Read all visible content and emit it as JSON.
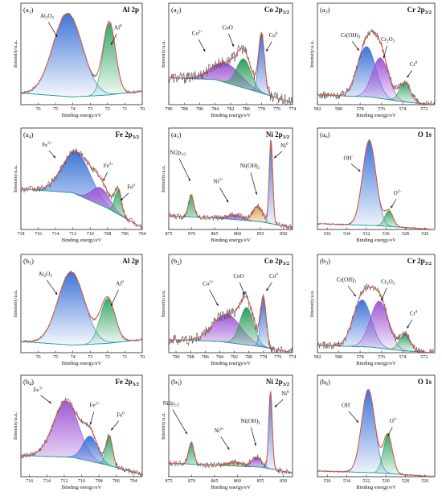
{
  "chart_data": [
    {
      "id": "a1",
      "type": "area",
      "tag": "a",
      "tag_sub": "1",
      "title_main": "Al 2p",
      "title_sub": "",
      "xlabel": "Binding energy/eV",
      "ylabel": "Intensity/a.u.",
      "xlim": [
        77,
        70
      ],
      "xticks": [
        76,
        75,
        74,
        73,
        72,
        71,
        70
      ],
      "background": [
        [
          77,
          0.12
        ],
        [
          74,
          0.08
        ],
        [
          72,
          0.1
        ],
        [
          70,
          0.14
        ]
      ],
      "components": [
        {
          "name": "Al2O3",
          "color": "#3f75d6",
          "center": 74.3,
          "fwhm": 2.0,
          "amp": 0.86
        },
        {
          "name": "Al0",
          "color": "#38a96a",
          "center": 71.9,
          "fwhm": 0.85,
          "amp": 0.74
        }
      ],
      "noise": 0.015,
      "labels": [
        {
          "text": "Al",
          "sub": "2",
          "text2": "O",
          "sub2": "3",
          "lx": 75.5,
          "ly": 0.9,
          "ax": 74.9,
          "ay": 0.7
        },
        {
          "text": "Al",
          "sup": "0",
          "lx": 71.4,
          "ly": 0.78,
          "ax": 71.8,
          "ay": 0.62
        }
      ]
    },
    {
      "id": "a2",
      "type": "area",
      "tag": "a",
      "tag_sub": "2",
      "title_main": "Co 2p",
      "title_sub": "3/2",
      "xlabel": "Binding energy/eV",
      "ylabel": "Intensity/a.u.",
      "xlim": [
        790,
        774
      ],
      "xticks": [
        790,
        788,
        786,
        784,
        782,
        780,
        778,
        776,
        774
      ],
      "background": [
        [
          790,
          0.28
        ],
        [
          784,
          0.26
        ],
        [
          778,
          0.12
        ],
        [
          774,
          0.02
        ]
      ],
      "components": [
        {
          "name": "Co2+",
          "color": "#a05ad6",
          "center": 782.6,
          "fwhm": 4.5,
          "amp": 0.2
        },
        {
          "name": "CoO",
          "color": "#2f9a5e",
          "center": 780.3,
          "fwhm": 2.2,
          "amp": 0.3
        },
        {
          "name": "Co0",
          "color": "#3f75d6",
          "center": 778.0,
          "fwhm": 0.9,
          "amp": 0.6
        }
      ],
      "noise": 0.06,
      "labels": [
        {
          "text": "Co",
          "sup": "2+",
          "lx": 786.3,
          "ly": 0.72,
          "ax": 785.3,
          "ay": 0.55
        },
        {
          "text": "CoO",
          "lx": 782.4,
          "ly": 0.78,
          "ax": 781.6,
          "ay": 0.6
        },
        {
          "text": "Co",
          "sup": "0",
          "lx": 776.5,
          "ly": 0.7,
          "ax": 777.4,
          "ay": 0.55
        }
      ]
    },
    {
      "id": "a3",
      "type": "area",
      "tag": "a",
      "tag_sub": "3",
      "title_main": "Cr 2p",
      "title_sub": "3/2",
      "xlabel": "Binding energy/eV",
      "ylabel": "Intensity/a.u.",
      "xlim": [
        582,
        571
      ],
      "xticks": [
        582,
        580,
        578,
        576,
        574,
        572
      ],
      "background": [
        [
          582,
          0.1
        ],
        [
          577,
          0.08
        ],
        [
          574,
          0.03
        ],
        [
          571,
          0.0
        ]
      ],
      "components": [
        {
          "name": "Cr(OH)3",
          "color": "#3f75d6",
          "center": 577.4,
          "fwhm": 2.0,
          "amp": 0.52
        },
        {
          "name": "Cr2O3",
          "color": "#a05ad6",
          "center": 576.1,
          "fwhm": 1.8,
          "amp": 0.42
        },
        {
          "name": "Cr0",
          "color": "#38a96a",
          "center": 573.8,
          "fwhm": 1.2,
          "amp": 0.2
        }
      ],
      "noise": 0.04,
      "labels": [
        {
          "text": "Cr(OH)",
          "sub": "3",
          "lx": 578.9,
          "ly": 0.7,
          "ax": 578.1,
          "ay": 0.56
        },
        {
          "text": "Cr",
          "sub": "2",
          "text2": "O",
          "sub2": "3",
          "lx": 575.4,
          "ly": 0.66,
          "ax": 575.8,
          "ay": 0.48
        },
        {
          "text": "Cr",
          "sup": "0",
          "lx": 573.0,
          "ly": 0.4,
          "ax": 573.6,
          "ay": 0.28
        }
      ]
    },
    {
      "id": "a4",
      "type": "area",
      "tag": "a",
      "tag_sub": "4",
      "title_main": "Fe 2p",
      "title_sub": "3/2",
      "xlabel": "Binding energy/eV",
      "ylabel": "Intensity/a.u.",
      "xlim": [
        718,
        704
      ],
      "xticks": [
        718,
        716,
        714,
        712,
        710,
        708,
        706,
        704
      ],
      "background": [
        [
          718,
          0.42
        ],
        [
          712,
          0.38
        ],
        [
          708,
          0.22
        ],
        [
          704,
          0.02
        ]
      ],
      "components": [
        {
          "name": "Fe3+",
          "color": "#3f75d6",
          "center": 711.6,
          "fwhm": 3.8,
          "amp": 0.44
        },
        {
          "name": "Fe2+",
          "color": "#a05ad6",
          "center": 708.8,
          "fwhm": 2.4,
          "amp": 0.18
        },
        {
          "name": "Fe0",
          "color": "#38a96a",
          "center": 706.8,
          "fwhm": 0.9,
          "amp": 0.24
        }
      ],
      "noise": 0.035,
      "labels": [
        {
          "text": "Fe",
          "sup": "3+",
          "lx": 715.0,
          "ly": 0.86,
          "ax": 714.0,
          "ay": 0.74
        },
        {
          "text": "Fe",
          "sup": "2+",
          "lx": 707.9,
          "ly": 0.64,
          "ax": 708.5,
          "ay": 0.5
        },
        {
          "text": "Fe",
          "sup": "0",
          "lx": 705.3,
          "ly": 0.42,
          "ax": 706.5,
          "ay": 0.3
        }
      ]
    },
    {
      "id": "a5",
      "type": "area",
      "tag": "a",
      "tag_sub": "5",
      "title_main": "Ni 2p",
      "title_sub": "3/2",
      "xlabel": "Binding energy/eV",
      "ylabel": "Intensity/a.u.",
      "xlim": [
        875,
        848
      ],
      "xticks": [
        875,
        870,
        865,
        860,
        855,
        850
      ],
      "background": [
        [
          875,
          0.14
        ],
        [
          865,
          0.12
        ],
        [
          855,
          0.08
        ],
        [
          848,
          0.02
        ]
      ],
      "components": [
        {
          "name": "Ni2p1/2",
          "color": "#38a96a",
          "center": 870.1,
          "fwhm": 1.4,
          "amp": 0.22
        },
        {
          "name": "Ni2+",
          "color": "#a05ad6",
          "center": 860.5,
          "fwhm": 4.0,
          "amp": 0.05
        },
        {
          "name": "Ni(OH)2",
          "color": "#d5a358",
          "center": 855.6,
          "fwhm": 2.5,
          "amp": 0.16
        },
        {
          "name": "Ni0",
          "color": "#3f75d6",
          "center": 852.7,
          "fwhm": 0.9,
          "amp": 0.86
        }
      ],
      "noise": 0.03,
      "labels": [
        {
          "text": "Ni2p",
          "sub": "1/2",
          "lx": 873.0,
          "ly": 0.78,
          "ax": 870.3,
          "ay": 0.5
        },
        {
          "text": "Ni",
          "sup": "2+",
          "lx": 864.2,
          "ly": 0.48,
          "ax": 862.0,
          "ay": 0.28
        },
        {
          "text": "Ni(OH)",
          "sub": "2",
          "lx": 857.3,
          "ly": 0.64,
          "ax": 855.8,
          "ay": 0.36
        },
        {
          "text": "Ni",
          "sup": "0",
          "lx": 849.8,
          "ly": 0.85,
          "ax": 852.0,
          "ay": 0.74
        }
      ]
    },
    {
      "id": "a6",
      "type": "area",
      "tag": "a",
      "tag_sub": "6",
      "title_main": "O 1s",
      "title_sub": "",
      "xlabel": "Binding energy/eV",
      "ylabel": "",
      "xlim": [
        537,
        525
      ],
      "xticks": [
        536,
        534,
        532,
        530,
        528,
        526
      ],
      "background": [
        [
          537,
          0.06
        ],
        [
          531,
          0.04
        ],
        [
          528,
          0.02
        ],
        [
          525,
          0.0
        ]
      ],
      "components": [
        {
          "name": "OH-",
          "color": "#3f75d6",
          "center": 531.7,
          "fwhm": 1.6,
          "amp": 0.88
        },
        {
          "name": "O2-",
          "color": "#38a96a",
          "center": 529.7,
          "fwhm": 1.0,
          "amp": 0.16
        }
      ],
      "noise": 0.008,
      "labels": [
        {
          "text": "OH",
          "sup": "−",
          "lx": 533.8,
          "ly": 0.72,
          "ax": 532.6,
          "ay": 0.6
        },
        {
          "text": "O",
          "sup": "2−",
          "lx": 528.8,
          "ly": 0.36,
          "ax": 529.5,
          "ay": 0.22
        }
      ]
    },
    {
      "id": "b1",
      "type": "area",
      "tag": "b",
      "tag_sub": "1",
      "title_main": "Al 2p",
      "title_sub": "",
      "xlabel": "Binding energy/eV",
      "ylabel": "Intensity/a.u.",
      "xlim": [
        77,
        70
      ],
      "xticks": [
        76,
        75,
        74,
        73,
        72,
        71,
        70
      ],
      "background": [
        [
          77,
          0.12
        ],
        [
          74,
          0.08
        ],
        [
          72,
          0.1
        ],
        [
          70,
          0.14
        ]
      ],
      "components": [
        {
          "name": "Al2O3",
          "color": "#3f75d6",
          "center": 74.1,
          "fwhm": 1.8,
          "amp": 0.78
        },
        {
          "name": "Al0",
          "color": "#38a96a",
          "center": 72.0,
          "fwhm": 1.0,
          "amp": 0.48
        }
      ],
      "noise": 0.012,
      "labels": [
        {
          "text": "Al",
          "sub": "2",
          "text2": "O",
          "sub2": "3",
          "lx": 75.6,
          "ly": 0.82,
          "ax": 74.9,
          "ay": 0.62
        },
        {
          "text": "Al",
          "sup": "0",
          "lx": 71.3,
          "ly": 0.72,
          "ax": 71.8,
          "ay": 0.5
        }
      ]
    },
    {
      "id": "b2",
      "type": "area",
      "tag": "b",
      "tag_sub": "2",
      "title_main": "Co 2p",
      "title_sub": "3/2",
      "xlabel": "Binding energy/eV",
      "ylabel": "Intensity/a.u.",
      "xlim": [
        791,
        774
      ],
      "xticks": [
        790,
        788,
        786,
        784,
        782,
        780,
        778,
        776,
        774
      ],
      "background": [
        [
          791,
          0.14
        ],
        [
          784,
          0.12
        ],
        [
          778,
          0.06
        ],
        [
          774,
          0.0
        ]
      ],
      "components": [
        {
          "name": "Co2+",
          "color": "#a05ad6",
          "center": 783.0,
          "fwhm": 4.5,
          "amp": 0.3
        },
        {
          "name": "CoO",
          "color": "#2f9a5e",
          "center": 780.3,
          "fwhm": 2.2,
          "amp": 0.4
        },
        {
          "name": "Co0",
          "color": "#3f75d6",
          "center": 778.0,
          "fwhm": 0.9,
          "amp": 0.52
        }
      ],
      "noise": 0.06,
      "labels": [
        {
          "text": "Co",
          "sup": "2+",
          "lx": 785.6,
          "ly": 0.72,
          "ax": 784.2,
          "ay": 0.5
        },
        {
          "text": "CoO",
          "lx": 781.4,
          "ly": 0.8,
          "ax": 780.6,
          "ay": 0.62
        },
        {
          "text": "Co",
          "sup": "0",
          "lx": 776.6,
          "ly": 0.8,
          "ax": 777.6,
          "ay": 0.66
        }
      ]
    },
    {
      "id": "b3",
      "type": "area",
      "tag": "b",
      "tag_sub": "3",
      "title_main": "Cr 2p",
      "title_sub": "3/2",
      "xlabel": "Binding energy/eV",
      "ylabel": "Intensity/a.u.",
      "xlim": [
        582,
        571
      ],
      "xticks": [
        582,
        580,
        578,
        576,
        574,
        572
      ],
      "background": [
        [
          582,
          0.08
        ],
        [
          577,
          0.06
        ],
        [
          574,
          0.02
        ],
        [
          571,
          0.0
        ]
      ],
      "components": [
        {
          "name": "Cr(OH)3",
          "color": "#3f75d6",
          "center": 577.8,
          "fwhm": 2.0,
          "amp": 0.5
        },
        {
          "name": "Cr2O3",
          "color": "#a05ad6",
          "center": 576.2,
          "fwhm": 2.0,
          "amp": 0.5
        },
        {
          "name": "Cr0",
          "color": "#38a96a",
          "center": 573.8,
          "fwhm": 1.2,
          "amp": 0.18
        }
      ],
      "noise": 0.04,
      "labels": [
        {
          "text": "Cr(OH)",
          "sub": "3",
          "lx": 579.3,
          "ly": 0.76,
          "ax": 578.4,
          "ay": 0.6
        },
        {
          "text": "Cr",
          "sub": "2",
          "text2": "O",
          "sub2": "3",
          "lx": 575.4,
          "ly": 0.74,
          "ax": 576.0,
          "ay": 0.56
        },
        {
          "text": "Cr",
          "sup": "0",
          "lx": 573.0,
          "ly": 0.4,
          "ax": 573.6,
          "ay": 0.26
        }
      ]
    },
    {
      "id": "b4",
      "type": "area",
      "tag": "b",
      "tag_sub": "4",
      "title_main": "Fe 2p",
      "title_sub": "3/2",
      "xlabel": "Binding energy/eV",
      "ylabel": "Intensity/a.u.",
      "xlim": [
        717,
        703
      ],
      "xticks": [
        716,
        714,
        712,
        710,
        708,
        706,
        704
      ],
      "background": [
        [
          717,
          0.22
        ],
        [
          711,
          0.2
        ],
        [
          707,
          0.12
        ],
        [
          703,
          0.02
        ]
      ],
      "components": [
        {
          "name": "Fe3+",
          "color": "#a05ad6",
          "center": 711.8,
          "fwhm": 3.4,
          "amp": 0.58
        },
        {
          "name": "Fe2+",
          "color": "#3f75d6",
          "center": 709.0,
          "fwhm": 2.0,
          "amp": 0.26
        },
        {
          "name": "Fe0",
          "color": "#38a96a",
          "center": 706.8,
          "fwhm": 0.9,
          "amp": 0.3
        }
      ],
      "noise": 0.03,
      "labels": [
        {
          "text": "Fe",
          "sup": "3+",
          "lx": 715.0,
          "ly": 0.88,
          "ax": 713.5,
          "ay": 0.76
        },
        {
          "text": "Fe",
          "sup": "2+",
          "lx": 708.5,
          "ly": 0.72,
          "ax": 709.0,
          "ay": 0.54
        },
        {
          "text": "Fe",
          "sup": "0",
          "lx": 705.5,
          "ly": 0.62,
          "ax": 706.6,
          "ay": 0.48
        }
      ]
    },
    {
      "id": "b5",
      "type": "area",
      "tag": "b",
      "tag_sub": "5",
      "title_main": "Ni 2p",
      "title_sub": "3/2",
      "xlabel": "Binding energy/eV",
      "ylabel": "Intensity/a.u.",
      "xlim": [
        875,
        848
      ],
      "xticks": [
        875,
        870,
        865,
        860,
        855,
        850
      ],
      "background": [
        [
          875,
          0.14
        ],
        [
          865,
          0.12
        ],
        [
          855,
          0.1
        ],
        [
          848,
          0.04
        ]
      ],
      "components": [
        {
          "name": "Ni2p1/2",
          "color": "#38a96a",
          "center": 870.1,
          "fwhm": 1.4,
          "amp": 0.22
        },
        {
          "name": "Ni2+",
          "color": "#d5a358",
          "center": 860.5,
          "fwhm": 4.0,
          "amp": 0.04
        },
        {
          "name": "Ni(OH)2",
          "color": "#a05ad6",
          "center": 855.8,
          "fwhm": 2.5,
          "amp": 0.1
        },
        {
          "name": "Ni0",
          "color": "#3f75d6",
          "center": 852.8,
          "fwhm": 0.9,
          "amp": 0.8
        }
      ],
      "noise": 0.03,
      "labels": [
        {
          "text": "Ni2p",
          "sub": "1/2",
          "lx": 874.5,
          "ly": 0.74,
          "ax": 871.0,
          "ay": 0.44
        },
        {
          "text": "Ni",
          "sup": "2+",
          "lx": 864.0,
          "ly": 0.46,
          "ax": 861.8,
          "ay": 0.28
        },
        {
          "text": "Ni(OH)",
          "sub": "2",
          "lx": 857.2,
          "ly": 0.56,
          "ax": 856.0,
          "ay": 0.32
        },
        {
          "text": "Ni",
          "sup": "0",
          "lx": 849.6,
          "ly": 0.84,
          "ax": 851.9,
          "ay": 0.72
        }
      ]
    },
    {
      "id": "b6",
      "type": "area",
      "tag": "b",
      "tag_sub": "6",
      "title_main": "O 1s",
      "title_sub": "",
      "xlabel": "Binding energy/eV",
      "ylabel": "",
      "xlim": [
        537,
        525
      ],
      "xticks": [
        536,
        534,
        532,
        530,
        528,
        526
      ],
      "background": [
        [
          537,
          0.06
        ],
        [
          531,
          0.04
        ],
        [
          528,
          0.02
        ],
        [
          525,
          0.0
        ]
      ],
      "components": [
        {
          "name": "OH-",
          "color": "#3f75d6",
          "center": 531.8,
          "fwhm": 1.6,
          "amp": 0.86
        },
        {
          "name": "O2-",
          "color": "#38a96a",
          "center": 529.8,
          "fwhm": 1.1,
          "amp": 0.4
        }
      ],
      "noise": 0.008,
      "labels": [
        {
          "text": "OH",
          "sup": "−",
          "lx": 534.0,
          "ly": 0.72,
          "ax": 532.8,
          "ay": 0.56
        },
        {
          "text": "O",
          "sup": "2−",
          "lx": 529.2,
          "ly": 0.56,
          "ax": 529.8,
          "ay": 0.42
        }
      ]
    }
  ],
  "colors": {
    "envelope": "#e05a4a",
    "raw": "#555555",
    "background_line": "#1aa5a0"
  }
}
